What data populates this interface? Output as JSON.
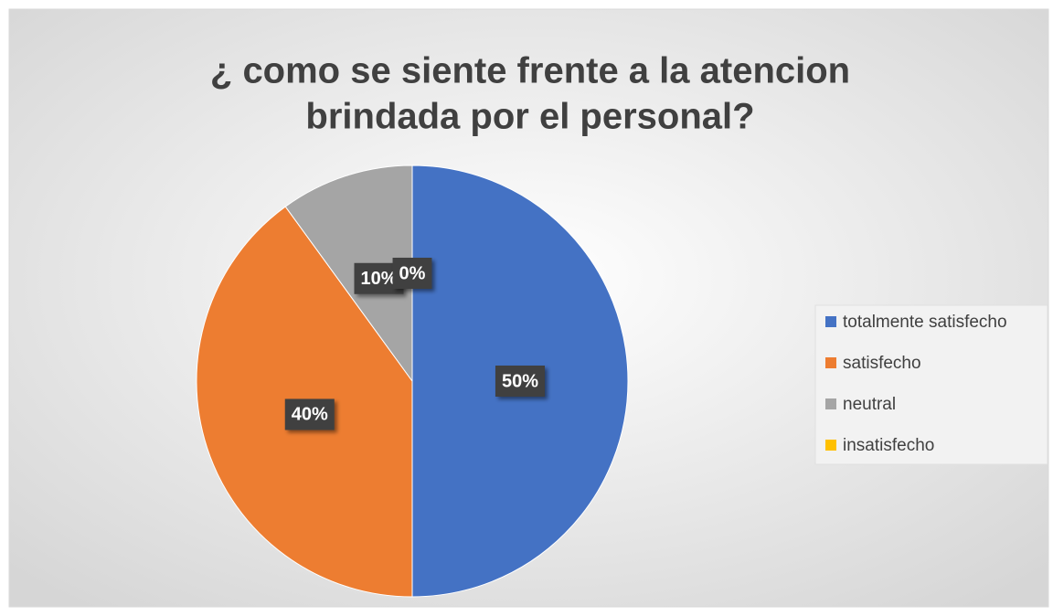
{
  "chart_data": {
    "type": "pie",
    "title": [
      "¿ como se siente frente a la atencion",
      "brindada por el personal?"
    ],
    "categories": [
      "totalmente satisfecho",
      "satisfecho",
      "neutral",
      "insatisfecho"
    ],
    "values": [
      50,
      40,
      10,
      0
    ],
    "value_labels": [
      "50%",
      "40%",
      "10%",
      "0%"
    ],
    "colors": [
      "#4472c4",
      "#ed7d31",
      "#a5a5a5",
      "#ffc000"
    ],
    "legend": "right"
  }
}
